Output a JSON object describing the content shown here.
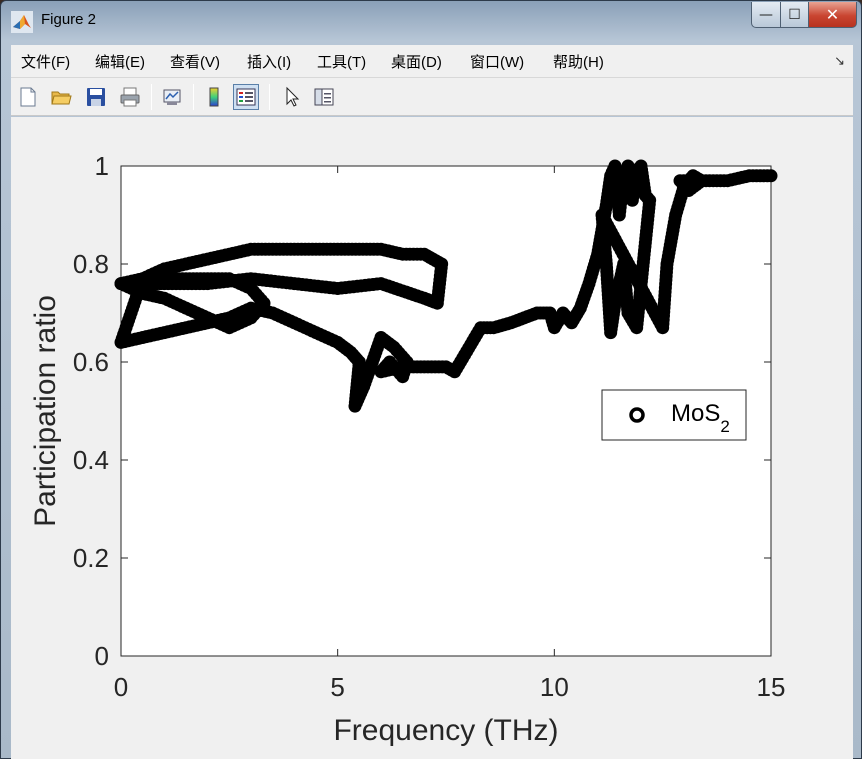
{
  "window": {
    "title": "Figure 2",
    "minimize": "—",
    "maximize": "☐",
    "close": "✕"
  },
  "menu": [
    {
      "label": "文件(F)",
      "name": "menu-file"
    },
    {
      "label": "编辑(E)",
      "name": "menu-edit"
    },
    {
      "label": "查看(V)",
      "name": "menu-view"
    },
    {
      "label": "插入(I)",
      "name": "menu-insert"
    },
    {
      "label": "工具(T)",
      "name": "menu-tools"
    },
    {
      "label": "桌面(D)",
      "name": "menu-desktop"
    },
    {
      "label": "窗口(W)",
      "name": "menu-window"
    },
    {
      "label": "帮助(H)",
      "name": "menu-help"
    }
  ],
  "toolbar_icons": [
    "new-figure-icon",
    "open-folder-icon",
    "save-icon",
    "print-icon",
    "link-plot-icon",
    "colorbar-icon",
    "legend-icon",
    "pointer-icon",
    "property-inspector-icon"
  ],
  "chart_data": {
    "type": "scatter",
    "xlabel": "Frequency (THz)",
    "ylabel": "Participation ratio",
    "xlim": [
      0,
      15
    ],
    "ylim": [
      0,
      1
    ],
    "xticks": [
      "0",
      "5",
      "10",
      "15"
    ],
    "yticks": [
      "0",
      "0.2",
      "0.4",
      "0.6",
      "0.8",
      "1"
    ],
    "grid": false,
    "legend": {
      "placement": "east",
      "entries": [
        "MoS",
        "2"
      ]
    },
    "marker_color": "#000000",
    "series": [
      {
        "name": "MoS2",
        "x": [
          0.0,
          0.5,
          1.0,
          1.5,
          2.0,
          2.5,
          3.0,
          3.5,
          4.0,
          4.5,
          5.0,
          5.5,
          6.0,
          6.5,
          7.0,
          7.2,
          7.4,
          7.3,
          7.0,
          6.0,
          5.0,
          4.0,
          3.0,
          2.0,
          1.0,
          0.3,
          0.0,
          0.5,
          1.0,
          1.5,
          2.0,
          2.5,
          3.0,
          3.3,
          3.0,
          2.5,
          2.0,
          1.5,
          1.0,
          0.5,
          0.0,
          0.5,
          1.0,
          1.5,
          2.0,
          2.5,
          3.0,
          3.5,
          4.0,
          4.5,
          5.0,
          5.3,
          5.5,
          5.4,
          5.6,
          5.8,
          6.0,
          6.3,
          6.6,
          6.5,
          6.2,
          6.0,
          6.5,
          7.0,
          7.5,
          7.7,
          8.3,
          8.6,
          9.0,
          9.3,
          9.6,
          9.9,
          10.0,
          10.2,
          10.4,
          10.6,
          10.8,
          11.0,
          11.1,
          11.2,
          11.3,
          11.4,
          11.5,
          11.6,
          11.7,
          11.8,
          11.9,
          12.0,
          12.1,
          12.2,
          11.9,
          11.7,
          11.6,
          11.4,
          11.3,
          11.2,
          11.1,
          12.5,
          12.6,
          12.8,
          13.0,
          13.2,
          13.4,
          13.1,
          12.9,
          13.5,
          14.0,
          14.5,
          15.0
        ],
        "y": [
          0.76,
          0.77,
          0.79,
          0.8,
          0.81,
          0.82,
          0.83,
          0.83,
          0.83,
          0.83,
          0.83,
          0.83,
          0.83,
          0.82,
          0.82,
          0.81,
          0.8,
          0.72,
          0.73,
          0.76,
          0.75,
          0.76,
          0.77,
          0.76,
          0.76,
          0.76,
          0.76,
          0.74,
          0.73,
          0.71,
          0.69,
          0.67,
          0.69,
          0.72,
          0.75,
          0.77,
          0.77,
          0.77,
          0.77,
          0.77,
          0.64,
          0.65,
          0.66,
          0.67,
          0.68,
          0.69,
          0.71,
          0.7,
          0.68,
          0.66,
          0.64,
          0.62,
          0.6,
          0.51,
          0.55,
          0.6,
          0.65,
          0.63,
          0.6,
          0.57,
          0.6,
          0.58,
          0.59,
          0.59,
          0.59,
          0.58,
          0.67,
          0.67,
          0.68,
          0.69,
          0.7,
          0.7,
          0.67,
          0.7,
          0.68,
          0.71,
          0.76,
          0.82,
          0.87,
          0.92,
          0.98,
          1.0,
          0.9,
          0.98,
          1.0,
          0.93,
          0.99,
          1.0,
          0.94,
          0.93,
          0.67,
          0.7,
          0.8,
          0.72,
          0.66,
          0.8,
          0.9,
          0.67,
          0.8,
          0.9,
          0.96,
          0.98,
          0.97,
          0.95,
          0.97,
          0.97,
          0.97,
          0.98,
          0.98
        ]
      }
    ]
  }
}
